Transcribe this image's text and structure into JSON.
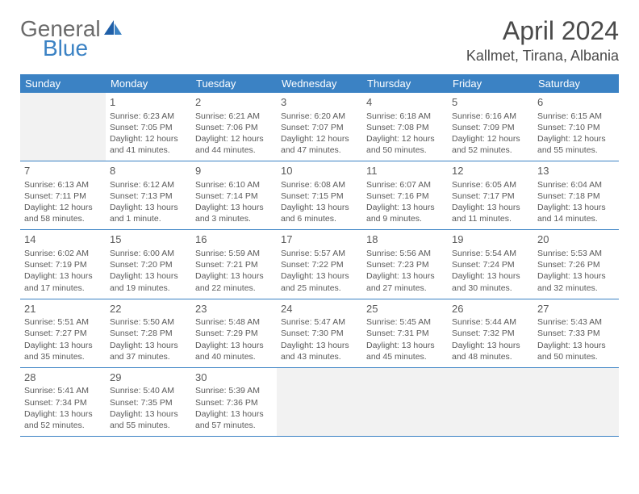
{
  "brand": {
    "part1": "General",
    "part2": "Blue"
  },
  "title": "April 2024",
  "location": "Kallmet, Tirana, Albania",
  "colors": {
    "header_bg": "#3b82c4",
    "header_text": "#ffffff",
    "cell_text": "#5a5a5a",
    "border": "#3b82c4",
    "blank_bg": "#f2f2f2",
    "page_bg": "#ffffff"
  },
  "typography": {
    "title_fontsize": 32,
    "location_fontsize": 18,
    "dayheader_fontsize": 13,
    "daynum_fontsize": 13,
    "cell_fontsize": 10.5
  },
  "day_headers": [
    "Sunday",
    "Monday",
    "Tuesday",
    "Wednesday",
    "Thursday",
    "Friday",
    "Saturday"
  ],
  "weeks": [
    [
      null,
      {
        "n": "1",
        "sr": "Sunrise: 6:23 AM",
        "ss": "Sunset: 7:05 PM",
        "d1": "Daylight: 12 hours",
        "d2": "and 41 minutes."
      },
      {
        "n": "2",
        "sr": "Sunrise: 6:21 AM",
        "ss": "Sunset: 7:06 PM",
        "d1": "Daylight: 12 hours",
        "d2": "and 44 minutes."
      },
      {
        "n": "3",
        "sr": "Sunrise: 6:20 AM",
        "ss": "Sunset: 7:07 PM",
        "d1": "Daylight: 12 hours",
        "d2": "and 47 minutes."
      },
      {
        "n": "4",
        "sr": "Sunrise: 6:18 AM",
        "ss": "Sunset: 7:08 PM",
        "d1": "Daylight: 12 hours",
        "d2": "and 50 minutes."
      },
      {
        "n": "5",
        "sr": "Sunrise: 6:16 AM",
        "ss": "Sunset: 7:09 PM",
        "d1": "Daylight: 12 hours",
        "d2": "and 52 minutes."
      },
      {
        "n": "6",
        "sr": "Sunrise: 6:15 AM",
        "ss": "Sunset: 7:10 PM",
        "d1": "Daylight: 12 hours",
        "d2": "and 55 minutes."
      }
    ],
    [
      {
        "n": "7",
        "sr": "Sunrise: 6:13 AM",
        "ss": "Sunset: 7:11 PM",
        "d1": "Daylight: 12 hours",
        "d2": "and 58 minutes."
      },
      {
        "n": "8",
        "sr": "Sunrise: 6:12 AM",
        "ss": "Sunset: 7:13 PM",
        "d1": "Daylight: 13 hours",
        "d2": "and 1 minute."
      },
      {
        "n": "9",
        "sr": "Sunrise: 6:10 AM",
        "ss": "Sunset: 7:14 PM",
        "d1": "Daylight: 13 hours",
        "d2": "and 3 minutes."
      },
      {
        "n": "10",
        "sr": "Sunrise: 6:08 AM",
        "ss": "Sunset: 7:15 PM",
        "d1": "Daylight: 13 hours",
        "d2": "and 6 minutes."
      },
      {
        "n": "11",
        "sr": "Sunrise: 6:07 AM",
        "ss": "Sunset: 7:16 PM",
        "d1": "Daylight: 13 hours",
        "d2": "and 9 minutes."
      },
      {
        "n": "12",
        "sr": "Sunrise: 6:05 AM",
        "ss": "Sunset: 7:17 PM",
        "d1": "Daylight: 13 hours",
        "d2": "and 11 minutes."
      },
      {
        "n": "13",
        "sr": "Sunrise: 6:04 AM",
        "ss": "Sunset: 7:18 PM",
        "d1": "Daylight: 13 hours",
        "d2": "and 14 minutes."
      }
    ],
    [
      {
        "n": "14",
        "sr": "Sunrise: 6:02 AM",
        "ss": "Sunset: 7:19 PM",
        "d1": "Daylight: 13 hours",
        "d2": "and 17 minutes."
      },
      {
        "n": "15",
        "sr": "Sunrise: 6:00 AM",
        "ss": "Sunset: 7:20 PM",
        "d1": "Daylight: 13 hours",
        "d2": "and 19 minutes."
      },
      {
        "n": "16",
        "sr": "Sunrise: 5:59 AM",
        "ss": "Sunset: 7:21 PM",
        "d1": "Daylight: 13 hours",
        "d2": "and 22 minutes."
      },
      {
        "n": "17",
        "sr": "Sunrise: 5:57 AM",
        "ss": "Sunset: 7:22 PM",
        "d1": "Daylight: 13 hours",
        "d2": "and 25 minutes."
      },
      {
        "n": "18",
        "sr": "Sunrise: 5:56 AM",
        "ss": "Sunset: 7:23 PM",
        "d1": "Daylight: 13 hours",
        "d2": "and 27 minutes."
      },
      {
        "n": "19",
        "sr": "Sunrise: 5:54 AM",
        "ss": "Sunset: 7:24 PM",
        "d1": "Daylight: 13 hours",
        "d2": "and 30 minutes."
      },
      {
        "n": "20",
        "sr": "Sunrise: 5:53 AM",
        "ss": "Sunset: 7:26 PM",
        "d1": "Daylight: 13 hours",
        "d2": "and 32 minutes."
      }
    ],
    [
      {
        "n": "21",
        "sr": "Sunrise: 5:51 AM",
        "ss": "Sunset: 7:27 PM",
        "d1": "Daylight: 13 hours",
        "d2": "and 35 minutes."
      },
      {
        "n": "22",
        "sr": "Sunrise: 5:50 AM",
        "ss": "Sunset: 7:28 PM",
        "d1": "Daylight: 13 hours",
        "d2": "and 37 minutes."
      },
      {
        "n": "23",
        "sr": "Sunrise: 5:48 AM",
        "ss": "Sunset: 7:29 PM",
        "d1": "Daylight: 13 hours",
        "d2": "and 40 minutes."
      },
      {
        "n": "24",
        "sr": "Sunrise: 5:47 AM",
        "ss": "Sunset: 7:30 PM",
        "d1": "Daylight: 13 hours",
        "d2": "and 43 minutes."
      },
      {
        "n": "25",
        "sr": "Sunrise: 5:45 AM",
        "ss": "Sunset: 7:31 PM",
        "d1": "Daylight: 13 hours",
        "d2": "and 45 minutes."
      },
      {
        "n": "26",
        "sr": "Sunrise: 5:44 AM",
        "ss": "Sunset: 7:32 PM",
        "d1": "Daylight: 13 hours",
        "d2": "and 48 minutes."
      },
      {
        "n": "27",
        "sr": "Sunrise: 5:43 AM",
        "ss": "Sunset: 7:33 PM",
        "d1": "Daylight: 13 hours",
        "d2": "and 50 minutes."
      }
    ],
    [
      {
        "n": "28",
        "sr": "Sunrise: 5:41 AM",
        "ss": "Sunset: 7:34 PM",
        "d1": "Daylight: 13 hours",
        "d2": "and 52 minutes."
      },
      {
        "n": "29",
        "sr": "Sunrise: 5:40 AM",
        "ss": "Sunset: 7:35 PM",
        "d1": "Daylight: 13 hours",
        "d2": "and 55 minutes."
      },
      {
        "n": "30",
        "sr": "Sunrise: 5:39 AM",
        "ss": "Sunset: 7:36 PM",
        "d1": "Daylight: 13 hours",
        "d2": "and 57 minutes."
      },
      null,
      null,
      null,
      null
    ]
  ]
}
